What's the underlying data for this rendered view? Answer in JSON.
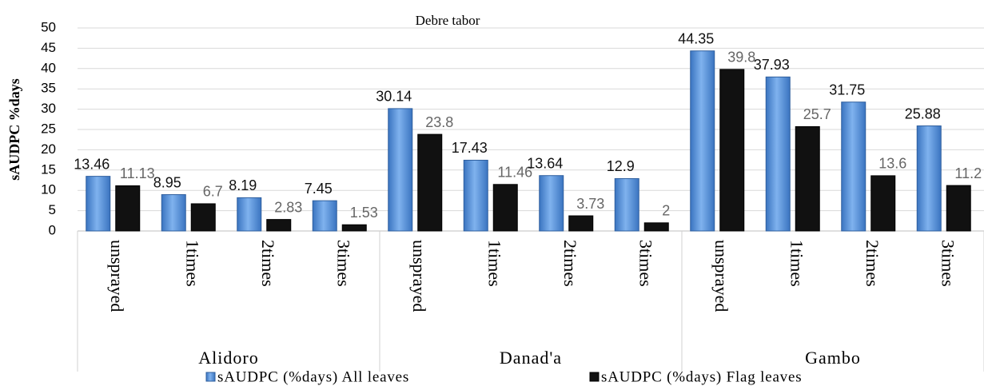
{
  "chart_data": {
    "type": "bar",
    "title": "Debre tabor",
    "y_label": "sAUDPC %days",
    "categories": [
      "unsprayed",
      "1times",
      "2times",
      "3times",
      "unsprayed",
      "1times",
      "2times",
      "3times",
      "unsprayed",
      "1times",
      "2times",
      "3times"
    ],
    "groups": [
      "Alidoro",
      "Danad'a",
      "Gambo"
    ],
    "series": [
      {
        "name": "sAUDPC (%days) All leaves",
        "color": "#4f8fd6",
        "values": [
          13.46,
          8.95,
          8.19,
          7.45,
          30.14,
          17.43,
          13.64,
          12.9,
          44.35,
          37.93,
          31.75,
          25.88
        ]
      },
      {
        "name": "sAUDPC (%days) Flag leaves",
        "color": "#111111",
        "values": [
          11.13,
          6.7,
          2.83,
          1.53,
          23.8,
          11.46,
          3.73,
          2,
          39.8,
          25.7,
          13.6,
          11.2
        ]
      }
    ],
    "ylim": [
      0,
      50
    ],
    "yticks": [
      0,
      5,
      10,
      15,
      20,
      25,
      30,
      35,
      40,
      45,
      50
    ],
    "grid": true,
    "legend": "bottom"
  }
}
